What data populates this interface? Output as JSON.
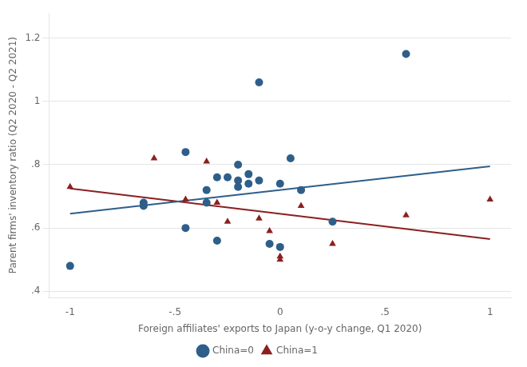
{
  "chart_data": {
    "type": "scatter",
    "xlabel": "Foreign affiliates' exports to Japan (y-o-y change, Q1 2020)",
    "ylabel": "Parent firms' inventory ratio (Q2 2020 - Q2 2021)",
    "series": [
      {
        "type": "line",
        "color": "#2e5f8a",
        "x": [
          -1.0,
          1.0
        ],
        "values": [
          0.645,
          0.795
        ]
      },
      {
        "type": "line",
        "color": "#8b2020",
        "x": [
          -1.0,
          1.0
        ],
        "values": [
          0.725,
          0.565
        ]
      },
      {
        "name": "China=0",
        "type": "scatter",
        "color": "#2e5f8a",
        "marker": "circle",
        "x": [
          -1.0,
          -0.65,
          -0.65,
          -0.45,
          -0.45,
          -0.35,
          -0.3,
          -0.25,
          -0.2,
          -0.2,
          -0.2,
          -0.15,
          -0.15,
          -0.1,
          -0.05,
          0.0,
          0.0,
          0.05,
          0.1,
          0.25,
          0.6,
          -0.3,
          -0.1,
          -0.35
        ],
        "values": [
          0.48,
          0.67,
          0.68,
          0.6,
          0.84,
          0.72,
          0.76,
          0.76,
          0.75,
          0.73,
          0.8,
          0.74,
          0.77,
          1.06,
          0.55,
          0.54,
          0.74,
          0.82,
          0.72,
          0.62,
          1.15,
          0.56,
          0.75,
          0.68
        ]
      },
      {
        "name": "China=1",
        "type": "scatter",
        "color": "#8b2020",
        "marker": "triangle",
        "x": [
          -1.0,
          -0.6,
          -0.45,
          -0.35,
          -0.3,
          -0.25,
          -0.1,
          -0.05,
          0.0,
          0.0,
          0.1,
          0.25,
          0.6,
          1.0
        ],
        "values": [
          0.73,
          0.82,
          0.69,
          0.81,
          0.68,
          0.62,
          0.63,
          0.59,
          0.5,
          0.51,
          0.67,
          0.55,
          0.64,
          0.69
        ]
      }
    ],
    "xlim": [
      -1.1,
      1.1
    ],
    "xticks": [
      -1,
      {
        "value": -0.5,
        "label": "-.5"
      },
      0,
      {
        "value": 0.5,
        "label": ".5"
      },
      1
    ],
    "ylim": [
      0.38,
      1.28
    ],
    "yticks": [
      {
        "value": 0.4,
        "label": ".4"
      },
      {
        "value": 0.6,
        "label": ".6"
      },
      {
        "value": 0.8,
        "label": ".8"
      },
      1,
      1.2
    ],
    "grid": "y",
    "legend": "bottom"
  }
}
